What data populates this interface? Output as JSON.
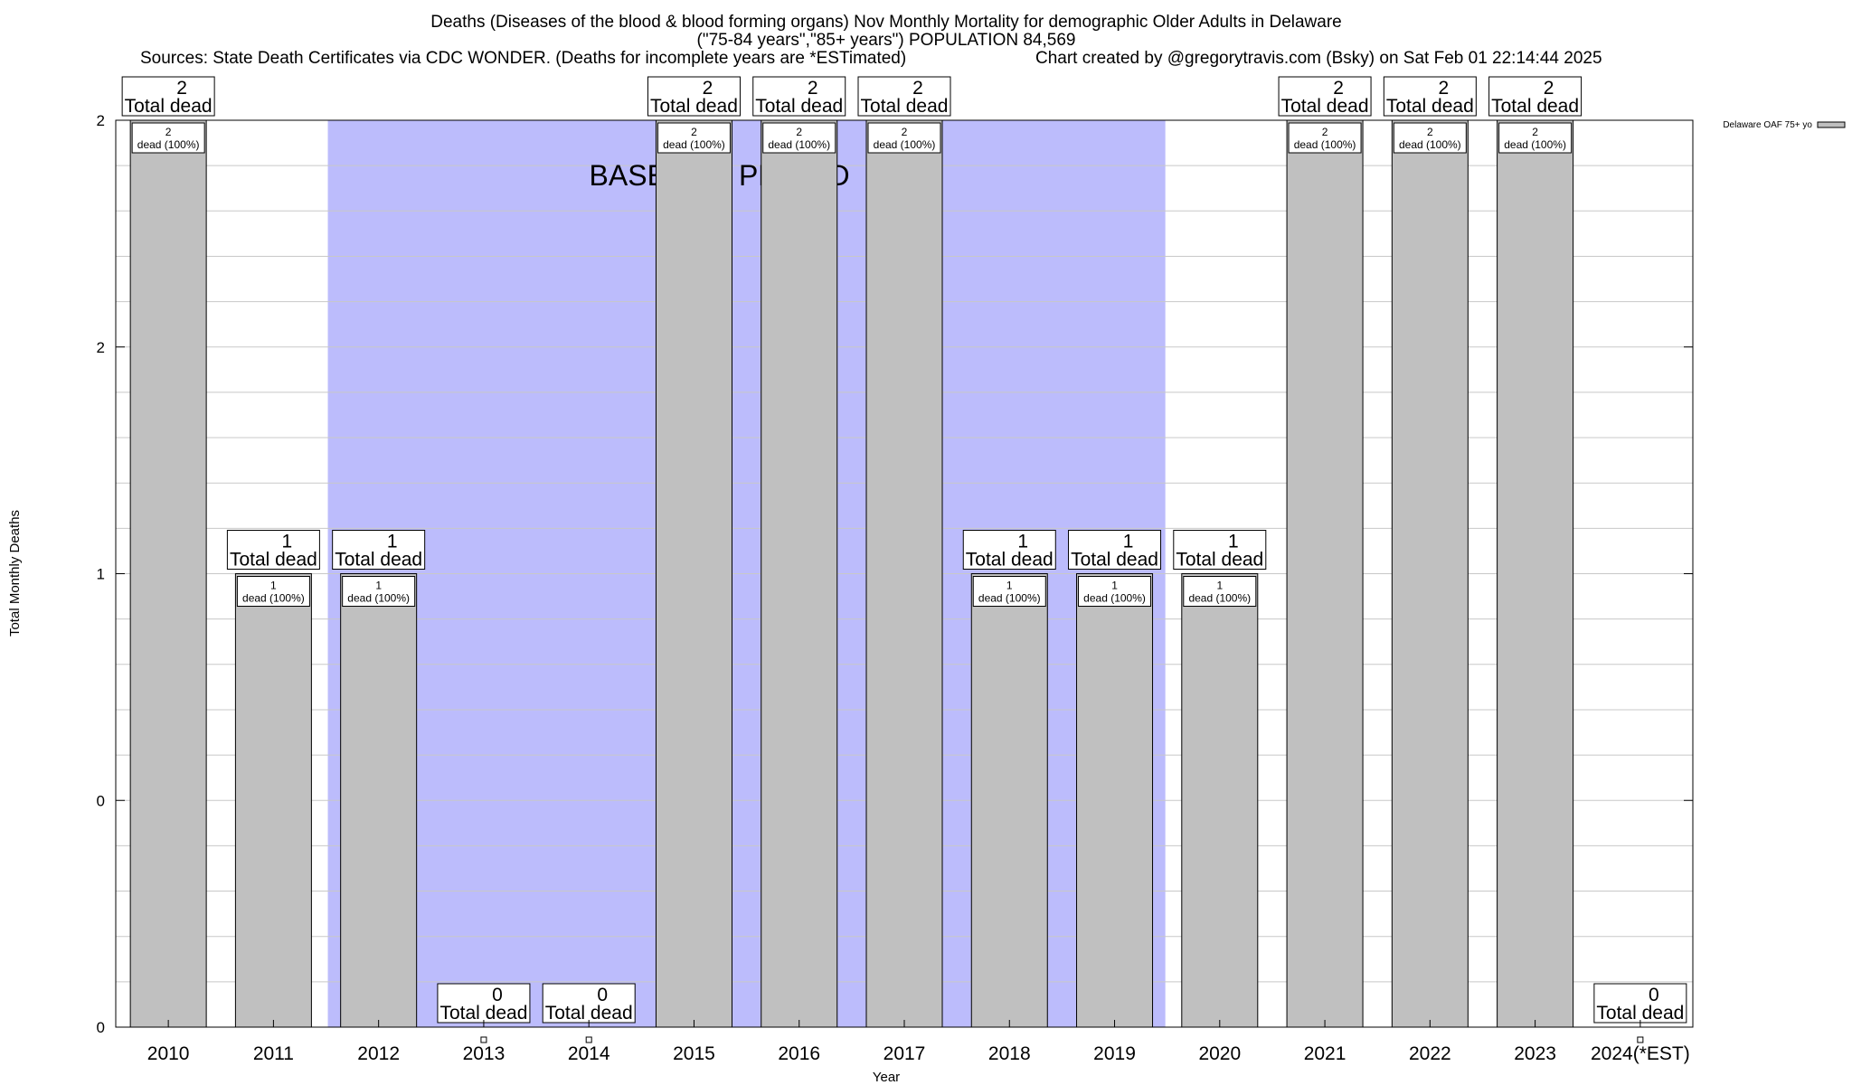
{
  "header": {
    "title_line1": "Deaths (Diseases of the blood & blood forming organs) Nov Monthly Mortality for demographic Older Adults in Delaware",
    "title_line2": "(\"75-84 years\",\"85+ years\") POPULATION 84,569",
    "sources": "Sources: State Death Certificates via CDC WONDER. (Deaths for incomplete years are *ESTimated)",
    "credit": "Chart created by @gregorytravis.com (Bsky) on Sat Feb 01 22:14:44 2025"
  },
  "chart_data": {
    "type": "bar",
    "title": "Deaths (Diseases of the blood & blood forming organs) Nov Monthly Mortality for demographic Older Adults in Delaware",
    "xlabel": "Year",
    "ylabel": "Total Monthly Deaths",
    "categories": [
      "2010",
      "2011",
      "2012",
      "2013",
      "2014",
      "2015",
      "2016",
      "2017",
      "2018",
      "2019",
      "2020",
      "2021",
      "2022",
      "2023",
      "2024(*EST)"
    ],
    "series": [
      {
        "name": "Delaware OAF 75+ yo",
        "values": [
          2,
          1,
          1,
          0,
          0,
          2,
          2,
          2,
          1,
          1,
          1,
          2,
          2,
          2,
          0
        ],
        "color": "#c0c0c0"
      }
    ],
    "y_tick_labels": [
      "0",
      "0",
      "1",
      "2",
      "2"
    ],
    "ylim": [
      0,
      2
    ],
    "grid": true,
    "legend_position": "top-right",
    "total_label_suffix": "Total dead",
    "inner_label_suffix": "dead (100%)",
    "baseline_period": {
      "label": "BASELINE PERIOD",
      "start": "2012",
      "end": "2019",
      "color": "#bcbcfc"
    }
  }
}
